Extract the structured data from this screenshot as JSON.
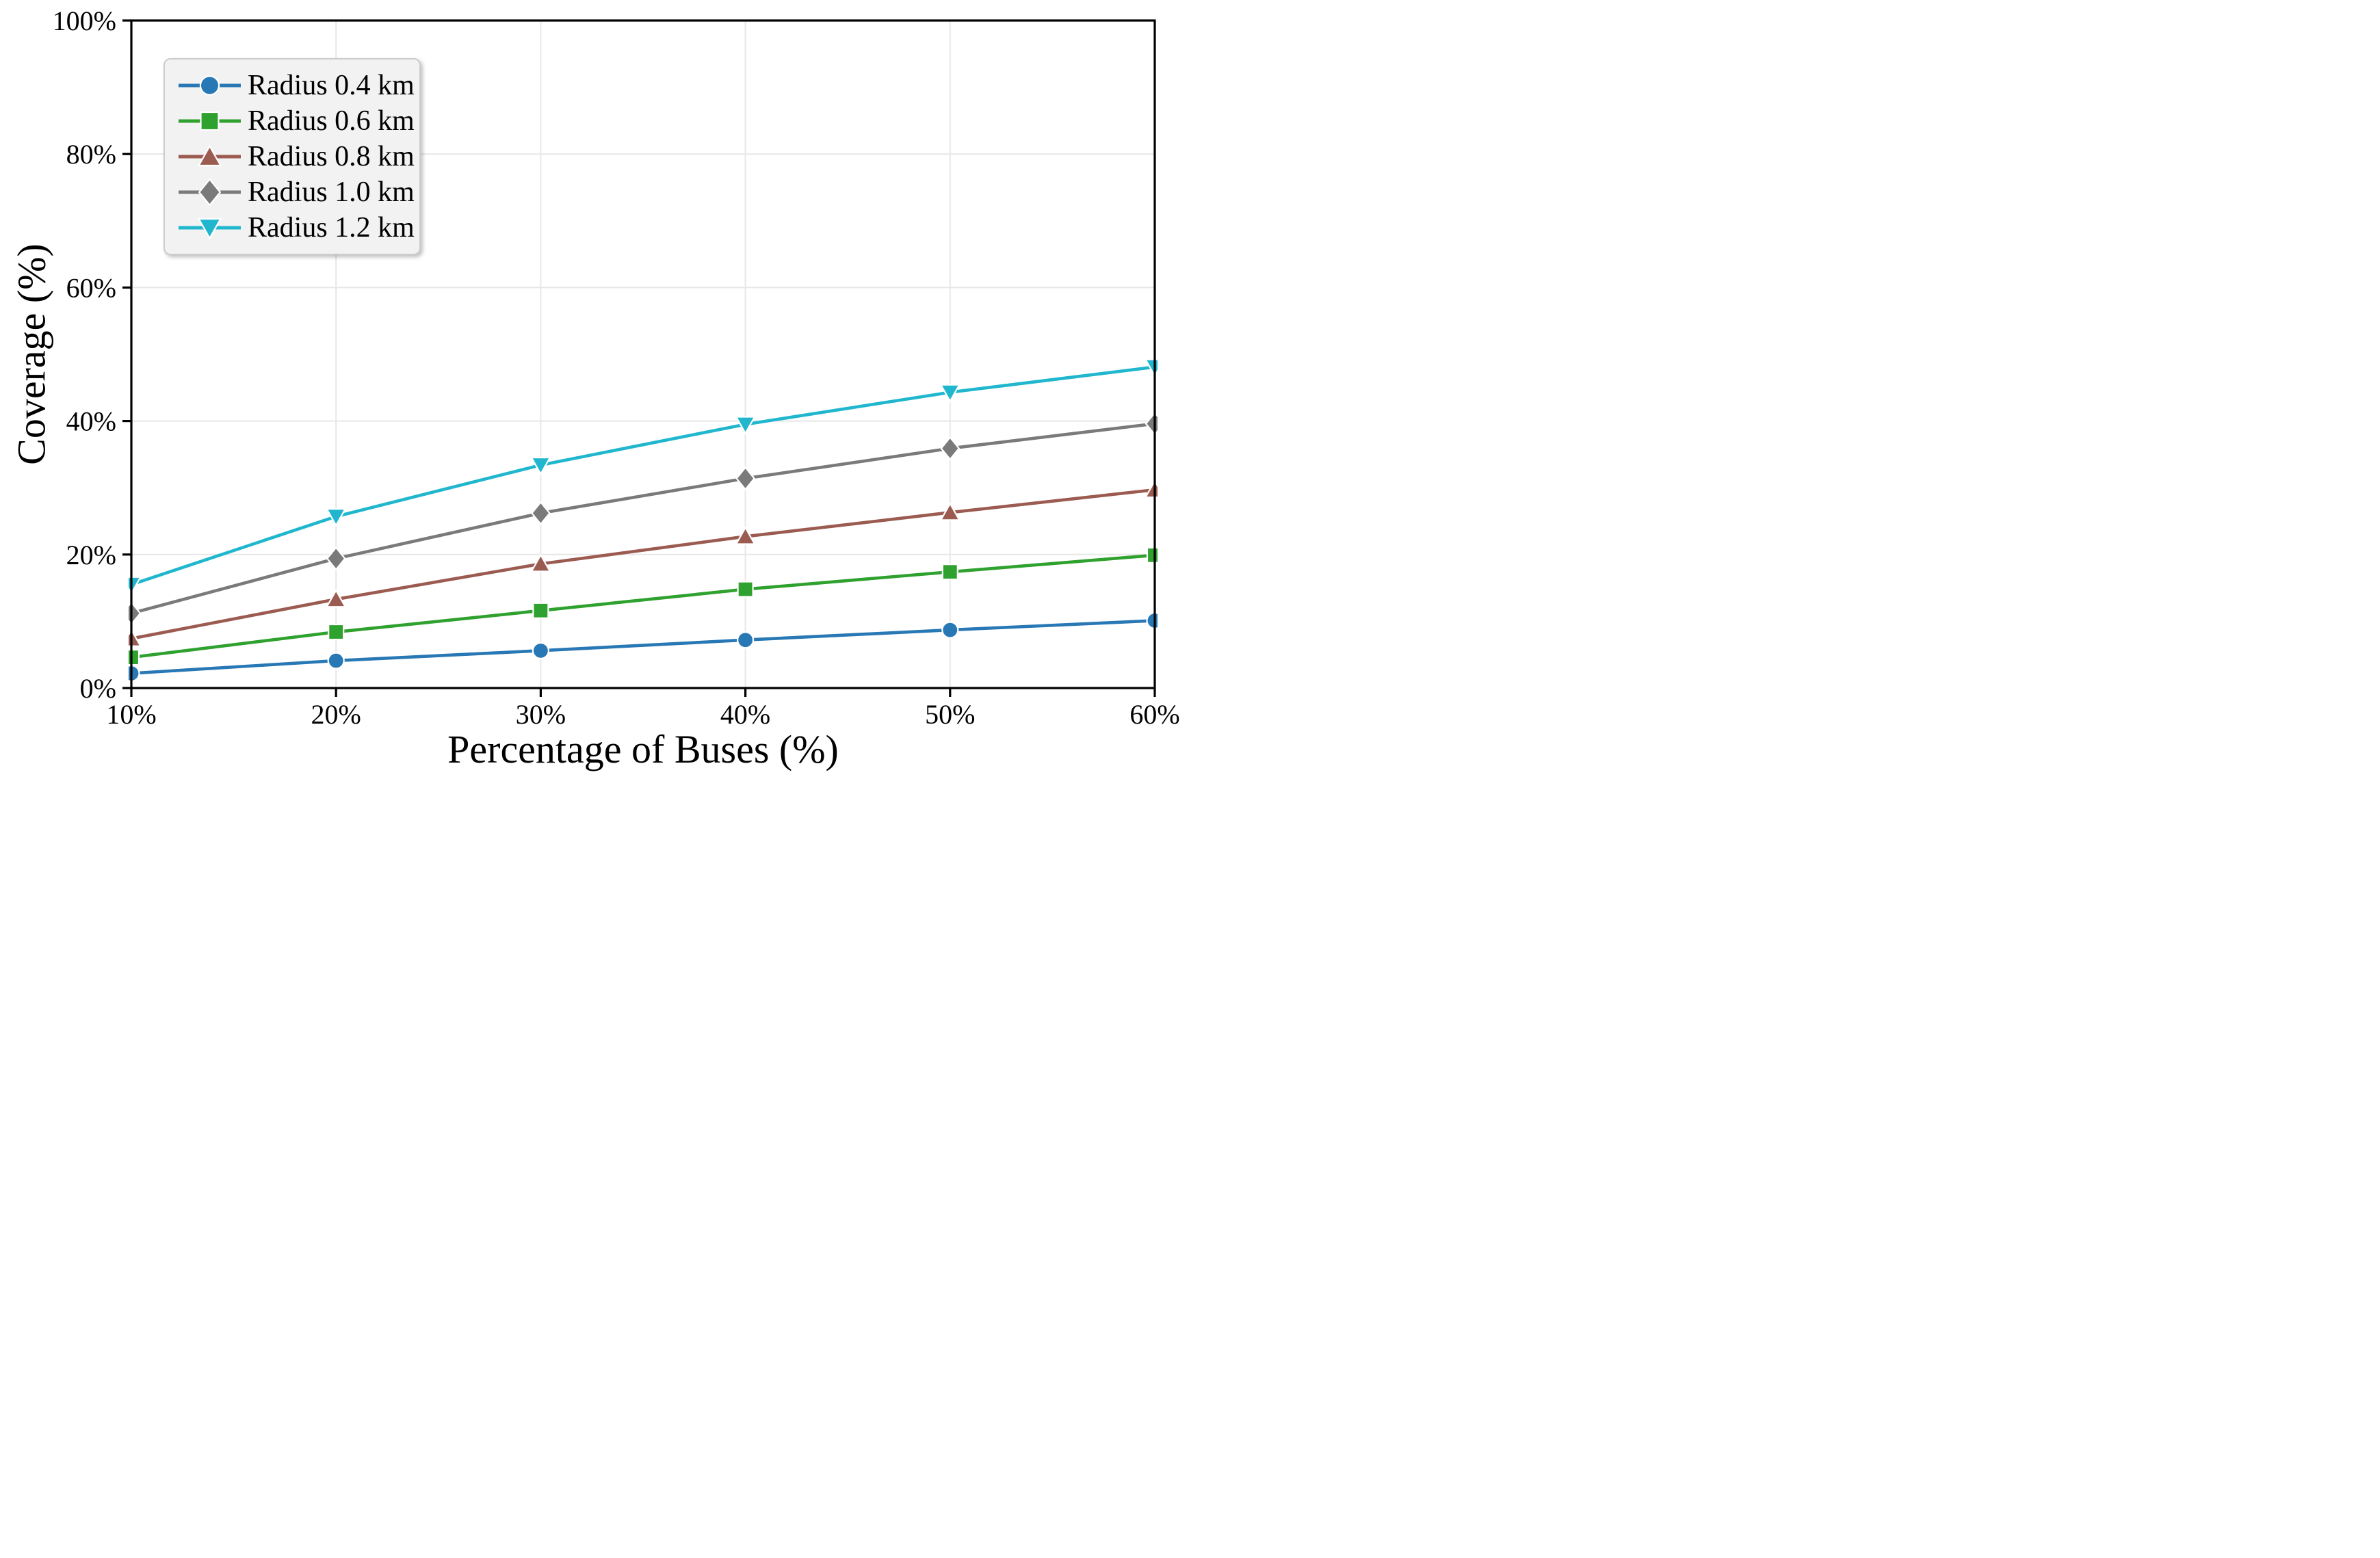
{
  "chart_data": {
    "type": "line",
    "xlabel": "Percentage of Buses (%)",
    "ylabel": "Coverage (%)",
    "xlim": [
      10,
      60
    ],
    "ylim": [
      0,
      100
    ],
    "grid": true,
    "legend_position": "upper-left",
    "x": [
      10,
      20,
      30,
      40,
      50,
      60
    ],
    "x_tick_labels": [
      "10%",
      "20%",
      "30%",
      "40%",
      "50%",
      "60%"
    ],
    "y_ticks": [
      0,
      20,
      40,
      60,
      80,
      100
    ],
    "y_tick_labels": [
      "0%",
      "20%",
      "40%",
      "60%",
      "80%",
      "100%"
    ],
    "colors": {
      "grid": "#e7e7e7",
      "axis": "#000000",
      "legend_bg": "#f2f2f2",
      "legend_border": "#cccccc"
    },
    "series": [
      {
        "name": "Radius 0.4 km",
        "marker": "circle",
        "color": "#2878b5",
        "values": [
          2.2,
          4.1,
          5.6,
          7.2,
          8.7,
          10.1
        ]
      },
      {
        "name": "Radius 0.6 km",
        "marker": "square",
        "color": "#2fa12e",
        "values": [
          4.6,
          8.4,
          11.6,
          14.8,
          17.4,
          19.9
        ]
      },
      {
        "name": "Radius 0.8 km",
        "marker": "triangle-up",
        "color": "#9c5b50",
        "values": [
          7.4,
          13.3,
          18.6,
          22.7,
          26.3,
          29.7
        ]
      },
      {
        "name": "Radius 1.0 km",
        "marker": "diamond",
        "color": "#7a7a7a",
        "values": [
          11.2,
          19.4,
          26.2,
          31.4,
          35.9,
          39.6
        ]
      },
      {
        "name": "Radius 1.2 km",
        "marker": "triangle-down",
        "color": "#20b7ce",
        "values": [
          15.5,
          25.7,
          33.4,
          39.5,
          44.3,
          48.1
        ]
      }
    ]
  }
}
